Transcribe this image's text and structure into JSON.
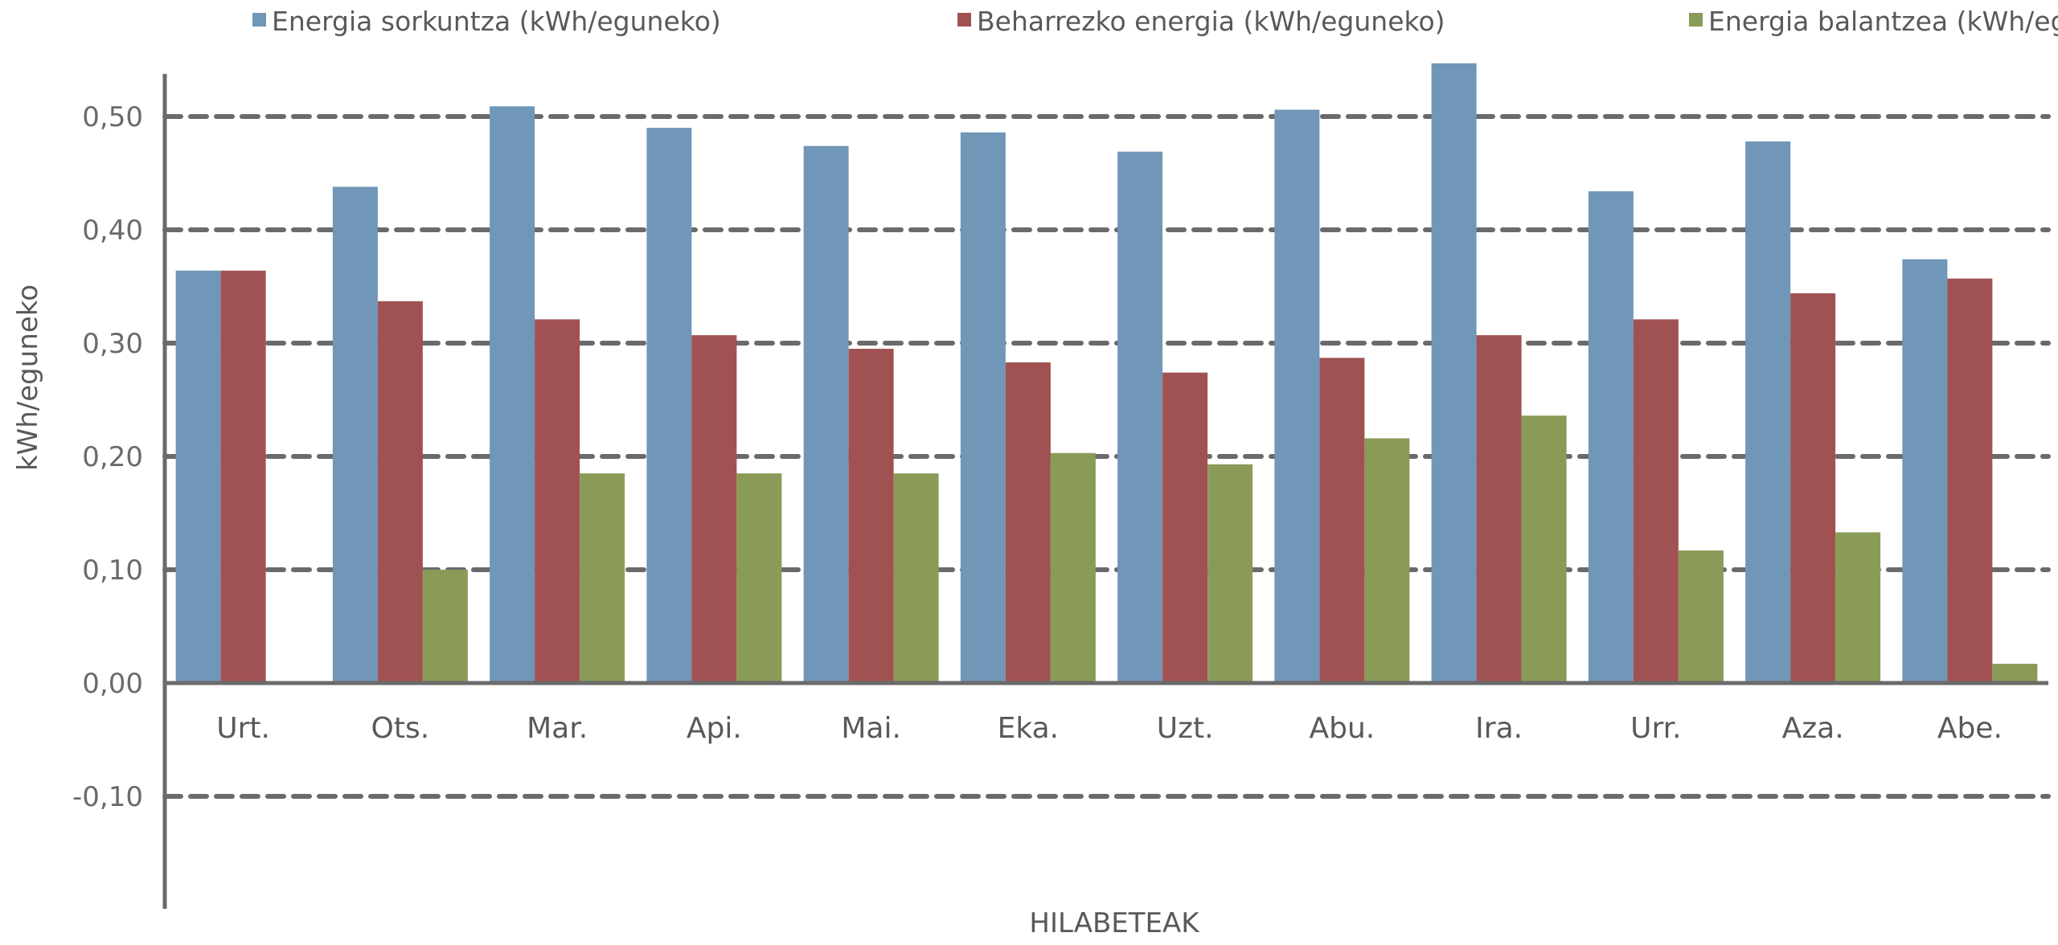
{
  "chart_data": {
    "type": "bar",
    "title": "",
    "xlabel": "HILABETEAK",
    "ylabel": "kWh/eguneko",
    "ylim": [
      -0.2,
      0.55
    ],
    "yticks": [
      -0.1,
      0,
      0.1,
      0.2,
      0.3,
      0.4,
      0.5
    ],
    "ytick_labels": [
      "-0,10",
      "0,00",
      "0,10",
      "0,20",
      "0,30",
      "0,40",
      "0,50"
    ],
    "grid": true,
    "legend_position": "top",
    "categories": [
      "Urt.",
      "Ots.",
      "Mar.",
      "Api.",
      "Mai.",
      "Eka.",
      "Uzt.",
      "Abu.",
      "Ira.",
      "Urr.",
      "Aza.",
      "Abe."
    ],
    "series": [
      {
        "name": "Energia sorkuntza (kWh/eguneko)",
        "color": "#7096b8",
        "values": [
          0.364,
          0.438,
          0.509,
          0.49,
          0.474,
          0.486,
          0.469,
          0.506,
          0.547,
          0.434,
          0.478,
          0.374
        ]
      },
      {
        "name": "Beharrezko energia (kWh/eguneko)",
        "color": "#a05252",
        "values": [
          0.364,
          0.337,
          0.321,
          0.307,
          0.295,
          0.283,
          0.274,
          0.287,
          0.307,
          0.321,
          0.344,
          0.357
        ]
      },
      {
        "name": "Energia balantzea (kWh/eguneko)",
        "color": "#8a9b58",
        "values": [
          0.0,
          0.1,
          0.185,
          0.185,
          0.185,
          0.203,
          0.193,
          0.216,
          0.236,
          0.117,
          0.133,
          0.017
        ]
      }
    ]
  }
}
